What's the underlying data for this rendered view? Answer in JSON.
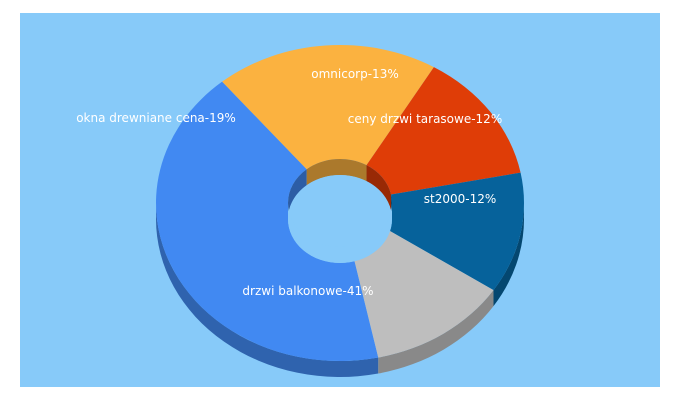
{
  "chart_data": {
    "type": "pie",
    "style": "3d-donut",
    "background": "#87CAF9",
    "title": "",
    "slices": [
      {
        "label": "drzwi balkonowe",
        "value": 41,
        "text": "drzwi balkonowe-41%",
        "color": "#4189F2",
        "text_color": "#ffffff"
      },
      {
        "label": "okna drewniane cena",
        "value": 19,
        "text": "okna drewniane cena-19%",
        "color": "#FBB240",
        "text_color": "#ffffff"
      },
      {
        "label": "omnicorp",
        "value": 13,
        "text": "omnicorp-13%",
        "color": "#DF3D07",
        "text_color": "#ffffff"
      },
      {
        "label": "ceny drzwi tarasowe",
        "value": 12,
        "text": "ceny drzwi tarasowe-12%",
        "color": "#06629B",
        "text_color": "#ffffff"
      },
      {
        "label": "st2000",
        "value": 12,
        "text": "st2000-12%",
        "color": "#BEBEBE",
        "text_color": "#ffffff"
      }
    ]
  }
}
